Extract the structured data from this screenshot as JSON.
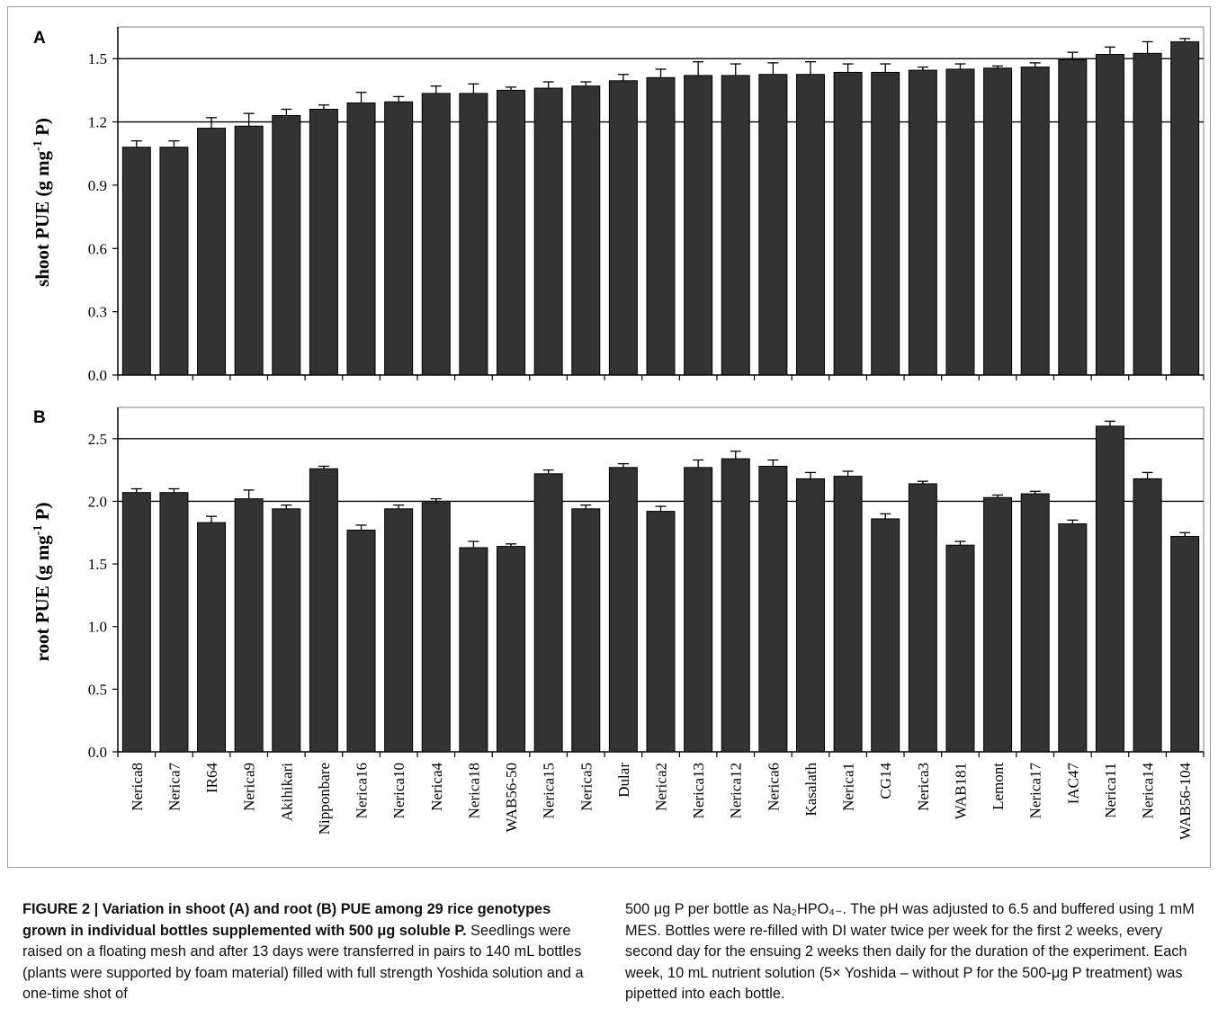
{
  "caption": {
    "fig_label": "FIGURE 2 |",
    "bold_title": " Variation in shoot (A) and root (B) PUE among 29 rice genotypes grown in individual bottles supplemented with 500 μg soluble P.",
    "left_body": " Seedlings were raised on a floating mesh and after 13 days were transferred in pairs to 140 mL bottles (plants were supported by foam material) filled with full strength Yoshida solution and a one-time shot of",
    "right_body": "500 μg P per bottle as Na₂HPO₄₋. The pH was adjusted to 6.5 and buffered using 1 mM MES. Bottles were re-filled with DI water twice per week for the first 2 weeks, every second day for the ensuing 2 weeks then daily for the duration of the experiment. Each week, 10 mL nutrient solution (5× Yoshida – without P for the 500-μg P treatment) was pipetted into each bottle."
  },
  "colors": {
    "bar": "#333333",
    "grid": "#000000",
    "frame": "#9a9a9a"
  },
  "chart_data": [
    {
      "type": "bar",
      "panel": "A",
      "ylabel_main": "shoot PUE (g mg",
      "ylabel_sup": "-1",
      "ylabel_end": " P)",
      "ylim": [
        0,
        1.65
      ],
      "yticks": [
        "0.0",
        "0.3",
        "0.6",
        "0.9",
        "1.2",
        "1.5"
      ],
      "ytick_values": [
        0,
        0.3,
        0.6,
        0.9,
        1.2,
        1.5
      ],
      "grid": [
        1.2,
        1.5
      ],
      "values": [
        1.08,
        1.08,
        1.17,
        1.18,
        1.23,
        1.26,
        1.29,
        1.295,
        1.335,
        1.335,
        1.35,
        1.36,
        1.37,
        1.395,
        1.41,
        1.42,
        1.42,
        1.425,
        1.425,
        1.435,
        1.435,
        1.445,
        1.45,
        1.455,
        1.46,
        1.495,
        1.52,
        1.525,
        1.58
      ],
      "errors": [
        0.03,
        0.03,
        0.05,
        0.06,
        0.03,
        0.02,
        0.05,
        0.025,
        0.035,
        0.045,
        0.015,
        0.03,
        0.02,
        0.03,
        0.04,
        0.065,
        0.055,
        0.055,
        0.06,
        0.04,
        0.04,
        0.015,
        0.025,
        0.01,
        0.02,
        0.035,
        0.035,
        0.055,
        0.015
      ]
    },
    {
      "type": "bar",
      "panel": "B",
      "ylabel_main": "root PUE (g mg",
      "ylabel_sup": "-1",
      "ylabel_end": " P)",
      "ylim": [
        0,
        2.75
      ],
      "yticks": [
        "0.0",
        "0.5",
        "1.0",
        "1.5",
        "2.0",
        "2.5"
      ],
      "ytick_values": [
        0,
        0.5,
        1.0,
        1.5,
        2.0,
        2.5
      ],
      "grid": [
        2.0,
        2.5
      ],
      "categories": [
        "Nerica8",
        "Nerica7",
        "IR64",
        "Nerica9",
        "Akihikari",
        "Nipponbare",
        "Nerica16",
        "Nerica10",
        "Nerica4",
        "Nerica18",
        "WAB56-50",
        "Nerica15",
        "Nerica5",
        "Dular",
        "Nerica2",
        "Nerica13",
        "Nerica12",
        "Nerica6",
        "Kasalath",
        "Nerica1",
        "CG14",
        "Nerica3",
        "WAB181",
        "Lemont",
        "Nerica17",
        "IAC47",
        "Nerica11",
        "Nerica14",
        "WAB56-104"
      ],
      "values": [
        2.07,
        2.07,
        1.83,
        2.02,
        1.94,
        2.26,
        1.77,
        1.94,
        1.99,
        1.63,
        1.64,
        2.22,
        1.94,
        2.27,
        1.92,
        2.27,
        2.34,
        2.28,
        2.18,
        2.2,
        1.86,
        2.14,
        1.65,
        2.03,
        2.06,
        1.82,
        2.6,
        2.18,
        1.72
      ],
      "errors": [
        0.03,
        0.03,
        0.05,
        0.07,
        0.03,
        0.02,
        0.04,
        0.03,
        0.03,
        0.05,
        0.02,
        0.03,
        0.03,
        0.03,
        0.04,
        0.06,
        0.06,
        0.05,
        0.05,
        0.04,
        0.04,
        0.02,
        0.03,
        0.02,
        0.02,
        0.03,
        0.04,
        0.05,
        0.03
      ]
    }
  ]
}
